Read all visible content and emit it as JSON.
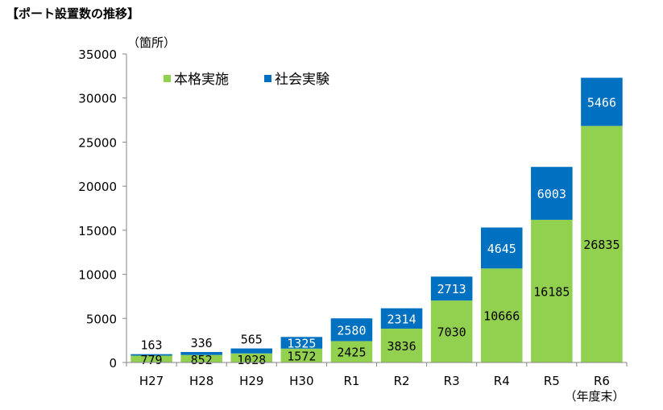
{
  "page_title": "【ポート設置数の推移】",
  "chart_data": {
    "type": "bar",
    "stacked": true,
    "unit_label": "（箇所）",
    "categories": [
      "H27",
      "H28",
      "H29",
      "H30",
      "R1",
      "R2",
      "R3",
      "R4",
      "R5",
      "R6"
    ],
    "category_note": "（年度末）",
    "series": [
      {
        "name": "本格実施",
        "color": "#92D050",
        "values": [
          779,
          852,
          1028,
          1572,
          2425,
          3836,
          7030,
          10666,
          16185,
          26835
        ]
      },
      {
        "name": "社会実験",
        "color": "#0070C0",
        "values": [
          163,
          336,
          565,
          1325,
          2580,
          2314,
          2713,
          4645,
          6003,
          5466
        ]
      }
    ],
    "ylim": [
      0,
      35000
    ],
    "yticks": [
      0,
      5000,
      10000,
      15000,
      20000,
      25000,
      30000,
      35000
    ],
    "grid": false,
    "legend_position": "top-left"
  }
}
